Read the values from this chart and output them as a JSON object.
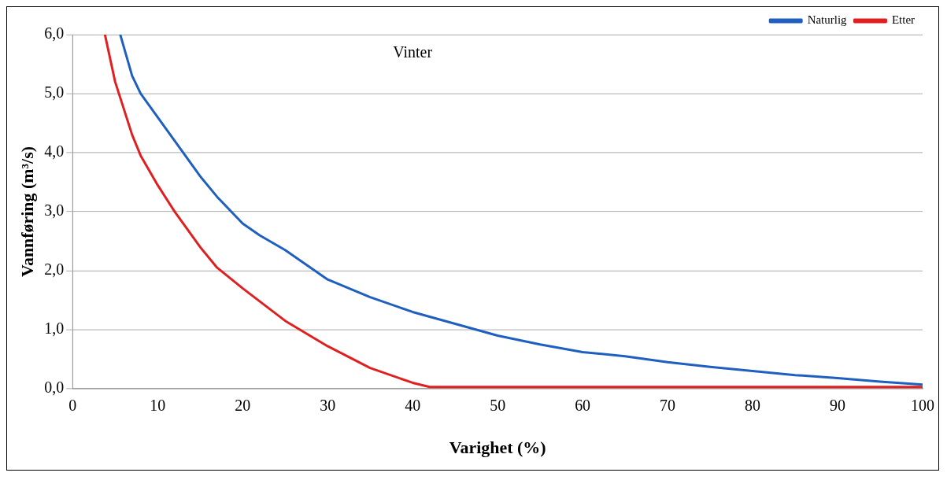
{
  "chart_data": {
    "type": "line",
    "xlabel": "Varighet (%)",
    "ylabel": "Vannføring (m³/s)",
    "annotations": [
      "Vinter"
    ],
    "xlim": [
      0,
      100
    ],
    "xticks": [
      0,
      10,
      20,
      30,
      40,
      50,
      60,
      70,
      80,
      90,
      100
    ],
    "ylim": [
      0,
      6
    ],
    "yticks": [
      {
        "value": 0,
        "label": "0,0"
      },
      {
        "value": 1,
        "label": "1,0"
      },
      {
        "value": 2,
        "label": "2,0"
      },
      {
        "value": 3,
        "label": "3,0"
      },
      {
        "value": 4,
        "label": "4,0"
      },
      {
        "value": 5,
        "label": "5,0"
      },
      {
        "value": 6,
        "label": "6,0"
      }
    ],
    "grid": "y",
    "legend": "top right",
    "marker": "none",
    "line_style": "solid",
    "series": [
      {
        "name": "Naturlig",
        "color": "#1f5fbf",
        "x": [
          5.6,
          7,
          8,
          10,
          12,
          15,
          17,
          20,
          22,
          25,
          28,
          30,
          35,
          40,
          45,
          50,
          55,
          60,
          65,
          70,
          75,
          80,
          85,
          90,
          95,
          100
        ],
        "values": [
          6,
          5.3,
          5.0,
          4.6,
          4.2,
          3.6,
          3.25,
          2.8,
          2.6,
          2.35,
          2.05,
          1.85,
          1.55,
          1.3,
          1.1,
          0.9,
          0.75,
          0.62,
          0.55,
          0.45,
          0.37,
          0.3,
          0.23,
          0.18,
          0.12,
          0.07
        ]
      },
      {
        "name": "Etter",
        "color": "#e02020",
        "x": [
          3.8,
          5,
          7,
          8,
          10,
          12,
          15,
          17,
          20,
          25,
          30,
          35,
          40,
          42,
          100
        ],
        "values": [
          6,
          5.2,
          4.3,
          3.95,
          3.45,
          3.0,
          2.4,
          2.05,
          1.7,
          1.15,
          0.72,
          0.35,
          0.1,
          0.03,
          0.03
        ]
      }
    ]
  }
}
